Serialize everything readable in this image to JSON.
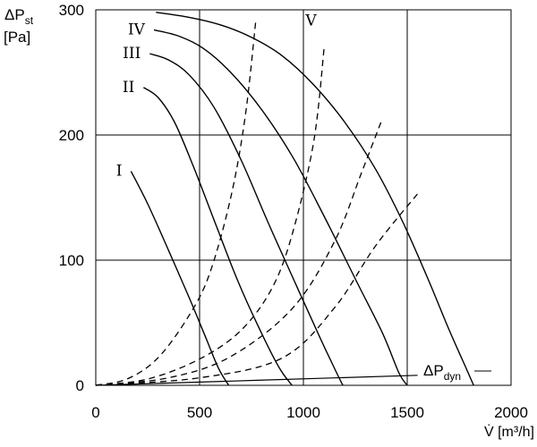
{
  "chart_data": {
    "type": "line",
    "ylabel_main": "ΔP",
    "ylabel_sub": "st",
    "ylabel_unit": "[Pa]",
    "xlabel": "V̇ [m³/h]",
    "xlim": [
      0,
      2000
    ],
    "ylim": [
      0,
      300
    ],
    "xticks": [
      0,
      500,
      1000,
      1500,
      2000
    ],
    "yticks": [
      0,
      100,
      200,
      300
    ],
    "xtick_labels": [
      "0",
      "500",
      "1000",
      "1500",
      "2000"
    ],
    "ytick_labels": [
      "0",
      "100",
      "200",
      "300"
    ],
    "grid": true,
    "fan_curves": [
      {
        "name": "I",
        "points": [
          [
            170,
            171
          ],
          [
            250,
            145
          ],
          [
            350,
            108
          ],
          [
            450,
            70
          ],
          [
            530,
            38
          ],
          [
            590,
            14
          ],
          [
            640,
            0
          ]
        ]
      },
      {
        "name": "II",
        "points": [
          [
            230,
            238
          ],
          [
            300,
            230
          ],
          [
            380,
            210
          ],
          [
            470,
            175
          ],
          [
            570,
            132
          ],
          [
            680,
            85
          ],
          [
            780,
            48
          ],
          [
            880,
            15
          ],
          [
            945,
            0
          ]
        ]
      },
      {
        "name": "III",
        "points": [
          [
            260,
            265
          ],
          [
            350,
            260
          ],
          [
            450,
            248
          ],
          [
            570,
            222
          ],
          [
            700,
            180
          ],
          [
            830,
            130
          ],
          [
            960,
            82
          ],
          [
            1080,
            38
          ],
          [
            1160,
            10
          ],
          [
            1190,
            0
          ]
        ]
      },
      {
        "name": "IV",
        "points": [
          [
            280,
            284
          ],
          [
            400,
            279
          ],
          [
            520,
            269
          ],
          [
            650,
            250
          ],
          [
            800,
            220
          ],
          [
            950,
            182
          ],
          [
            1100,
            135
          ],
          [
            1250,
            85
          ],
          [
            1380,
            42
          ],
          [
            1460,
            10
          ],
          [
            1500,
            0
          ]
        ]
      },
      {
        "name": "V",
        "points": [
          [
            290,
            298
          ],
          [
            450,
            294
          ],
          [
            600,
            288
          ],
          [
            750,
            278
          ],
          [
            900,
            263
          ],
          [
            1050,
            240
          ],
          [
            1200,
            210
          ],
          [
            1350,
            172
          ],
          [
            1480,
            130
          ],
          [
            1600,
            85
          ],
          [
            1700,
            45
          ],
          [
            1780,
            15
          ],
          [
            1820,
            0
          ]
        ]
      }
    ],
    "system_curves": [
      {
        "points": [
          [
            0,
            0
          ],
          [
            150,
            5
          ],
          [
            300,
            22
          ],
          [
            450,
            56
          ],
          [
            550,
            90
          ],
          [
            650,
            150
          ],
          [
            720,
            215
          ],
          [
            770,
            290
          ]
        ]
      },
      {
        "points": [
          [
            0,
            0
          ],
          [
            250,
            5
          ],
          [
            500,
            21
          ],
          [
            700,
            44
          ],
          [
            850,
            78
          ],
          [
            950,
            123
          ],
          [
            1050,
            195
          ],
          [
            1100,
            270
          ]
        ]
      },
      {
        "points": [
          [
            0,
            0
          ],
          [
            350,
            6
          ],
          [
            650,
            23
          ],
          [
            950,
            62
          ],
          [
            1150,
            115
          ],
          [
            1280,
            170
          ],
          [
            1380,
            213
          ]
        ]
      },
      {
        "points": [
          [
            0,
            0
          ],
          [
            500,
            6
          ],
          [
            900,
            22
          ],
          [
            1150,
            62
          ],
          [
            1350,
            112
          ],
          [
            1560,
            155
          ]
        ]
      }
    ],
    "dynamic_pressure_curve": {
      "name_main": "ΔP",
      "name_sub": "dyn",
      "points": [
        [
          0,
          0
        ],
        [
          1550,
          8
        ]
      ]
    }
  }
}
